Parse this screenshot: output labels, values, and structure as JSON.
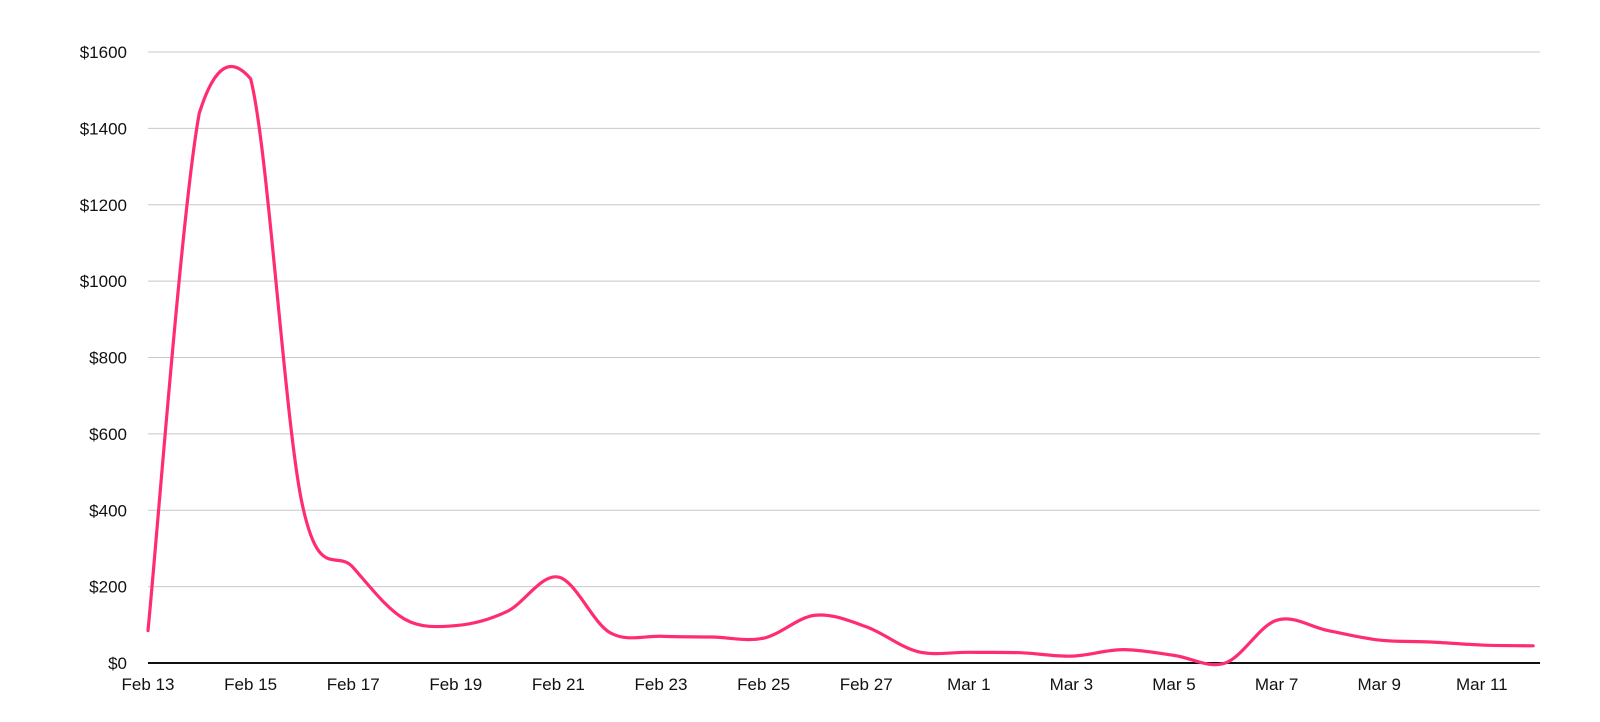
{
  "chart_data": {
    "type": "line",
    "title": "",
    "xlabel": "",
    "ylabel": "",
    "ylim": [
      0,
      1600
    ],
    "y_ticks": [
      0,
      200,
      400,
      600,
      800,
      1000,
      1200,
      1400,
      1600
    ],
    "y_tick_labels": [
      "$0",
      "$200",
      "$400",
      "$600",
      "$800",
      "$1000",
      "$1200",
      "$1400",
      "$1600"
    ],
    "x_tick_labels": [
      "Feb 13",
      "Feb 15",
      "Feb 17",
      "Feb 19",
      "Feb 21",
      "Feb 23",
      "Feb 25",
      "Feb 27",
      "Mar 1",
      "Mar 3",
      "Mar 5",
      "Mar 7",
      "Mar 9",
      "Mar 11"
    ],
    "x": [
      "Feb 13",
      "Feb 14",
      "Feb 15",
      "Feb 16",
      "Feb 17",
      "Feb 18",
      "Feb 19",
      "Feb 20",
      "Feb 21",
      "Feb 22",
      "Feb 23",
      "Feb 24",
      "Feb 25",
      "Feb 26",
      "Feb 27",
      "Feb 28",
      "Mar 1",
      "Mar 2",
      "Mar 3",
      "Mar 4",
      "Mar 5",
      "Mar 6",
      "Mar 7",
      "Mar 8",
      "Mar 9",
      "Mar 10",
      "Mar 11",
      "Mar 12"
    ],
    "grid": true,
    "legend": "none",
    "series": [
      {
        "color": "#ff2d6f",
        "values": [
          85,
          1440,
          1530,
          420,
          250,
          115,
          98,
          135,
          225,
          80,
          70,
          68,
          65,
          125,
          95,
          30,
          28,
          27,
          18,
          35,
          20,
          0,
          112,
          85,
          60,
          55,
          47,
          45
        ]
      }
    ]
  }
}
